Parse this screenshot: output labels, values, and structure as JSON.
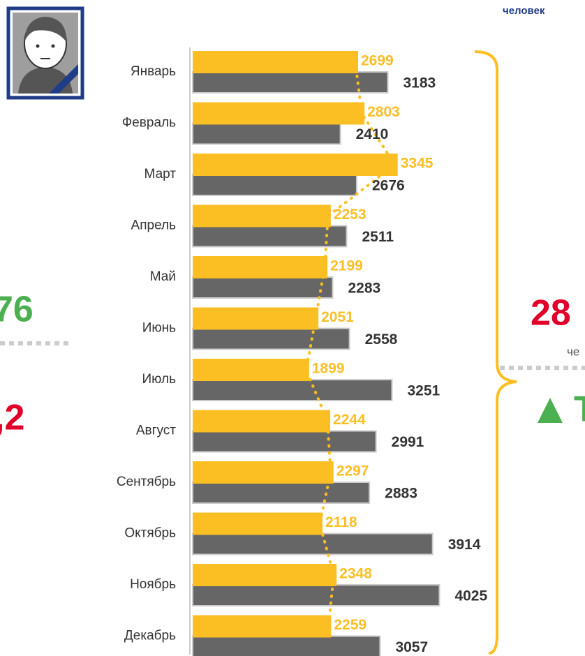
{
  "chart_data": {
    "type": "bar",
    "orientation": "horizontal",
    "categories": [
      "Январь",
      "Февраль",
      "Март",
      "Апрель",
      "Май",
      "Июнь",
      "Июль",
      "Август",
      "Сентябрь",
      "Октябрь",
      "Ноябрь",
      "Декабрь"
    ],
    "series": [
      {
        "color": "#fbbf24",
        "values": [
          2699,
          2803,
          3345,
          2253,
          2199,
          2051,
          1899,
          2244,
          2297,
          2118,
          2348,
          2259
        ]
      },
      {
        "color": "#666666",
        "values": [
          3183,
          2410,
          2676,
          2511,
          2283,
          2558,
          3251,
          2991,
          2883,
          3914,
          4025,
          3057
        ]
      }
    ],
    "xlim": [
      0,
      6400
    ],
    "annotations": [
      "человек",
      "76",
      ",2",
      "28",
      "че",
      "Т"
    ]
  }
}
